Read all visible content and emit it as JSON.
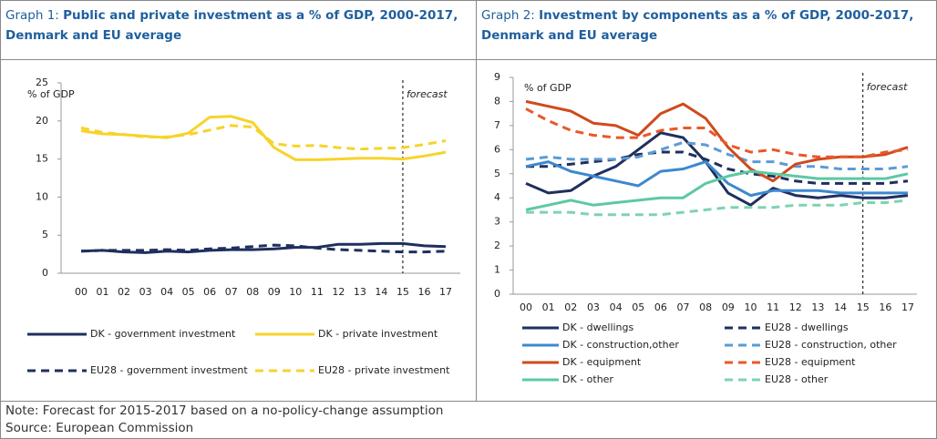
{
  "chart_data": [
    {
      "type": "line",
      "label": "Graph 1:",
      "title": "Public and private investment as a % of GDP, 2000-2017, Denmark and EU average",
      "ylabel": "% of GDP",
      "categories": [
        "00",
        "01",
        "02",
        "03",
        "04",
        "05",
        "06",
        "07",
        "08",
        "09",
        "10",
        "11",
        "12",
        "13",
        "14",
        "15",
        "16",
        "17"
      ],
      "ylim": [
        0,
        25
      ],
      "yticks": [
        0,
        5,
        10,
        15,
        20,
        25
      ],
      "annotations": [
        {
          "text": "forecast",
          "x": "15"
        }
      ],
      "series": [
        {
          "name": "DK - government investment",
          "color": "#1f2f5e",
          "dash": false,
          "values": [
            2.9,
            3.0,
            2.8,
            2.7,
            2.9,
            2.8,
            3.0,
            3.1,
            3.1,
            3.2,
            3.4,
            3.4,
            3.8,
            3.8,
            3.9,
            3.9,
            3.6,
            3.5
          ]
        },
        {
          "name": "DK - private investment",
          "color": "#f7d32a",
          "dash": false,
          "values": [
            18.7,
            18.3,
            18.2,
            18.0,
            17.8,
            18.4,
            20.5,
            20.6,
            19.8,
            16.5,
            14.9,
            14.9,
            15.0,
            15.1,
            15.1,
            15.0,
            15.4,
            15.9
          ]
        },
        {
          "name": "EU28 - government investment",
          "color": "#1f2f5e",
          "dash": true,
          "values": [
            2.9,
            3.0,
            3.0,
            3.0,
            3.1,
            3.0,
            3.2,
            3.3,
            3.5,
            3.7,
            3.6,
            3.3,
            3.1,
            3.0,
            2.9,
            2.8,
            2.8,
            2.9
          ]
        },
        {
          "name": "EU28 - private investment",
          "color": "#f7d32a",
          "dash": true,
          "values": [
            19.1,
            18.5,
            18.2,
            17.9,
            17.9,
            18.2,
            18.8,
            19.4,
            19.2,
            17.0,
            16.7,
            16.8,
            16.5,
            16.3,
            16.4,
            16.5,
            16.9,
            17.4
          ]
        }
      ]
    },
    {
      "type": "line",
      "label": "Graph 2:",
      "title": "Investment by components as a % of GDP, 2000-2017, Denmark and EU average",
      "ylabel": "% of GDP",
      "categories": [
        "00",
        "01",
        "02",
        "03",
        "04",
        "05",
        "06",
        "07",
        "08",
        "09",
        "10",
        "11",
        "12",
        "13",
        "14",
        "15",
        "16",
        "17"
      ],
      "ylim": [
        0,
        9
      ],
      "yticks": [
        0,
        1,
        2,
        3,
        4,
        5,
        6,
        7,
        8,
        9
      ],
      "annotations": [
        {
          "text": "forecast",
          "x": "15"
        }
      ],
      "series": [
        {
          "name": "DK - dwellings",
          "color": "#1f2f5e",
          "dash": false,
          "values": [
            4.6,
            4.2,
            4.3,
            4.9,
            5.3,
            6.0,
            6.7,
            6.5,
            5.5,
            4.2,
            3.7,
            4.4,
            4.1,
            4.0,
            4.1,
            4.0,
            4.0,
            4.1
          ]
        },
        {
          "name": "EU28 - dwellings",
          "color": "#1f2f5e",
          "dash": true,
          "values": [
            5.3,
            5.3,
            5.4,
            5.5,
            5.6,
            5.8,
            5.9,
            5.9,
            5.6,
            5.2,
            5.0,
            4.9,
            4.7,
            4.6,
            4.6,
            4.6,
            4.6,
            4.7
          ]
        },
        {
          "name": "DK - construction,other",
          "color": "#3d88cf",
          "dash": false,
          "values": [
            5.3,
            5.5,
            5.1,
            4.9,
            4.7,
            4.5,
            5.1,
            5.2,
            5.5,
            4.6,
            4.1,
            4.3,
            4.3,
            4.3,
            4.2,
            4.2,
            4.2,
            4.2
          ]
        },
        {
          "name": "EU28 - construction, other",
          "color": "#5b9bd5",
          "dash": true,
          "values": [
            5.6,
            5.7,
            5.6,
            5.6,
            5.6,
            5.7,
            6.0,
            6.3,
            6.2,
            5.8,
            5.5,
            5.5,
            5.3,
            5.3,
            5.2,
            5.2,
            5.2,
            5.3
          ]
        },
        {
          "name": "DK -  equipment",
          "color": "#d04a1c",
          "dash": false,
          "values": [
            8.0,
            7.8,
            7.6,
            7.1,
            7.0,
            6.6,
            7.5,
            7.9,
            7.3,
            6.1,
            5.2,
            4.7,
            5.4,
            5.6,
            5.7,
            5.7,
            5.8,
            6.1
          ]
        },
        {
          "name": "EU28 - equipment",
          "color": "#e8582a",
          "dash": true,
          "values": [
            7.7,
            7.2,
            6.8,
            6.6,
            6.5,
            6.5,
            6.8,
            6.9,
            6.9,
            6.2,
            5.9,
            6.0,
            5.8,
            5.7,
            5.7,
            5.7,
            5.9,
            6.0
          ]
        },
        {
          "name": "DK - other",
          "color": "#5cc9a4",
          "dash": false,
          "values": [
            3.5,
            3.7,
            3.9,
            3.7,
            3.8,
            3.9,
            4.0,
            4.0,
            4.6,
            4.9,
            5.1,
            5.0,
            4.9,
            4.8,
            4.8,
            4.8,
            4.8,
            5.0
          ]
        },
        {
          "name": "EU28 - other",
          "color": "#7ed3b2",
          "dash": true,
          "values": [
            3.4,
            3.4,
            3.4,
            3.3,
            3.3,
            3.3,
            3.3,
            3.4,
            3.5,
            3.6,
            3.6,
            3.6,
            3.7,
            3.7,
            3.7,
            3.8,
            3.8,
            3.9
          ]
        }
      ]
    }
  ],
  "notes": [
    "Note: Forecast for 2015-2017 based on a no-policy-change assumption",
    "Source: European Commission"
  ]
}
